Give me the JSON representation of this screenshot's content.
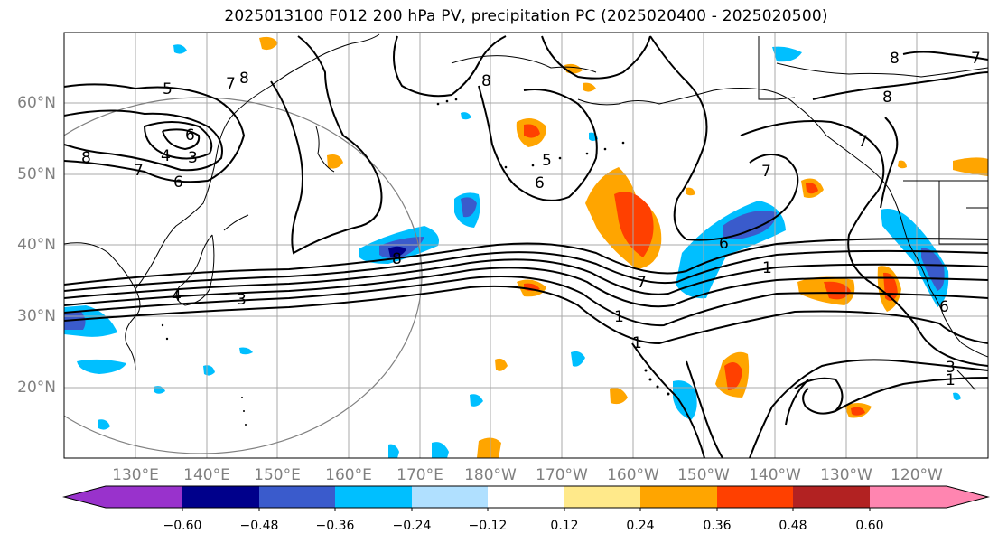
{
  "title": "2025013100 F012 200 hPa PV, precipitation PC (2025020400 - 2025020500)",
  "lat_labels": [
    "60°N",
    "50°N",
    "40°N",
    "30°N",
    "20°N"
  ],
  "lon_labels": [
    "130°E",
    "140°E",
    "150°E",
    "160°E",
    "170°E",
    "180°W",
    "170°W",
    "160°W",
    "150°W",
    "140°W",
    "130°W",
    "120°W"
  ],
  "colorbar": {
    "ticks": [
      "−0.60",
      "−0.48",
      "−0.36",
      "−0.24",
      "−0.12",
      "0.12",
      "0.24",
      "0.36",
      "0.48",
      "0.60"
    ],
    "colors": [
      "#9932cc",
      "#00008b",
      "#3a5bcc",
      "#00bfff",
      "#b0e0ff",
      "#ffffff",
      "#ffe98a",
      "#ffa500",
      "#ff4000",
      "#b22222",
      "#ff85b0"
    ]
  },
  "contour_labels": [
    "5",
    "7",
    "8",
    "3",
    "4",
    "6",
    "7",
    "8",
    "6",
    "5",
    "6",
    "8",
    "4",
    "3",
    "6",
    "1",
    "7",
    "8",
    "7",
    "7",
    "1",
    "1",
    "3",
    "1",
    "6",
    "8",
    "7",
    "8"
  ]
}
